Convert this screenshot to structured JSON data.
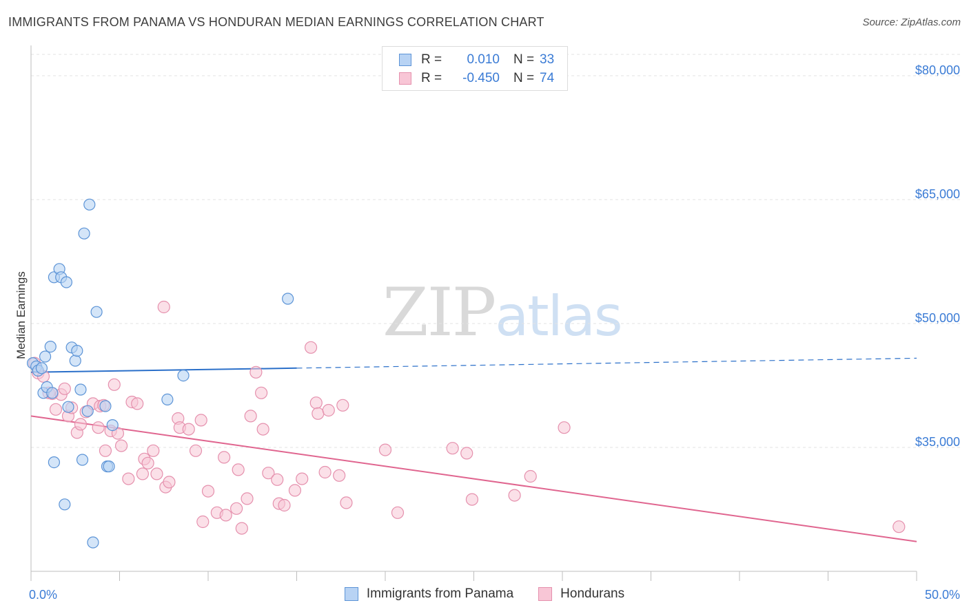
{
  "title": "IMMIGRANTS FROM PANAMA VS HONDURAN MEDIAN EARNINGS CORRELATION CHART",
  "source": "Source: ZipAtlas.com",
  "watermark": {
    "zip": "ZIP",
    "atlas": "atlas"
  },
  "legend": {
    "rows": [
      {
        "r_label": "R =",
        "r_value": "0.010",
        "n_label": "N =",
        "n_value": "33"
      },
      {
        "r_label": "R =",
        "r_value": "-0.450",
        "n_label": "N =",
        "n_value": "74"
      }
    ]
  },
  "colors": {
    "panama_fill": "#b8d3f4",
    "panama_stroke": "#5b93d6",
    "panama_line": "#2a6fc9",
    "honduran_fill": "#f8c6d6",
    "honduran_stroke": "#e590ad",
    "honduran_line": "#e0658f",
    "tick_text": "#3a7bd5",
    "grid": "#e3e3e3"
  },
  "chart_data": {
    "type": "scatter",
    "title": "IMMIGRANTS FROM PANAMA VS HONDURAN MEDIAN EARNINGS CORRELATION CHART",
    "xlabel": "",
    "ylabel": "Median Earnings",
    "xlim": [
      0,
      50
    ],
    "ylim": [
      20000,
      83000
    ],
    "x_tick_labels": [
      "0.0%",
      "50.0%"
    ],
    "y_ticks": [
      35000,
      50000,
      65000,
      80000
    ],
    "y_tick_labels": [
      "$35,000",
      "$50,000",
      "$65,000",
      "$80,000"
    ],
    "grid": true,
    "legend_position": "bottom",
    "series": [
      {
        "name": "Immigrants from Panama",
        "r": 0.01,
        "n": 33,
        "trend": {
          "x": [
            0,
            15,
            50
          ],
          "y": [
            44100,
            44600,
            45800
          ],
          "solid_until": 15
        },
        "points": [
          [
            0.1,
            45200
          ],
          [
            0.3,
            44800
          ],
          [
            0.4,
            44300
          ],
          [
            0.6,
            44600
          ],
          [
            0.7,
            41600
          ],
          [
            0.8,
            46000
          ],
          [
            0.9,
            42300
          ],
          [
            1.1,
            47200
          ],
          [
            1.2,
            41600
          ],
          [
            1.3,
            33200
          ],
          [
            1.3,
            55600
          ],
          [
            1.6,
            56600
          ],
          [
            1.7,
            55600
          ],
          [
            1.9,
            28100
          ],
          [
            2.0,
            55000
          ],
          [
            2.1,
            39900
          ],
          [
            2.3,
            47100
          ],
          [
            2.5,
            45500
          ],
          [
            2.6,
            46700
          ],
          [
            2.8,
            42000
          ],
          [
            2.9,
            33500
          ],
          [
            3.0,
            60900
          ],
          [
            3.2,
            39400
          ],
          [
            3.3,
            64400
          ],
          [
            3.5,
            23500
          ],
          [
            3.7,
            51400
          ],
          [
            4.2,
            40000
          ],
          [
            4.3,
            32700
          ],
          [
            4.4,
            32700
          ],
          [
            4.6,
            37700
          ],
          [
            7.7,
            40800
          ],
          [
            8.6,
            43700
          ],
          [
            14.5,
            53000
          ]
        ]
      },
      {
        "name": "Hondurans",
        "r": -0.45,
        "n": 74,
        "trend": {
          "x": [
            0,
            50
          ],
          "y": [
            38800,
            23600
          ]
        },
        "points": [
          [
            0.2,
            45200
          ],
          [
            0.4,
            44000
          ],
          [
            0.7,
            43600
          ],
          [
            1.0,
            41600
          ],
          [
            1.2,
            41500
          ],
          [
            1.4,
            39600
          ],
          [
            1.7,
            41400
          ],
          [
            1.9,
            42100
          ],
          [
            2.1,
            38800
          ],
          [
            2.3,
            39800
          ],
          [
            2.6,
            36800
          ],
          [
            2.8,
            37800
          ],
          [
            3.1,
            39300
          ],
          [
            3.5,
            40300
          ],
          [
            3.8,
            37400
          ],
          [
            3.9,
            40000
          ],
          [
            4.1,
            40100
          ],
          [
            4.2,
            34600
          ],
          [
            4.5,
            37000
          ],
          [
            4.7,
            42600
          ],
          [
            4.9,
            36700
          ],
          [
            5.1,
            35200
          ],
          [
            5.5,
            31200
          ],
          [
            5.7,
            40500
          ],
          [
            6.0,
            40300
          ],
          [
            6.3,
            31800
          ],
          [
            6.4,
            33600
          ],
          [
            6.6,
            33100
          ],
          [
            6.9,
            34600
          ],
          [
            7.1,
            31800
          ],
          [
            7.5,
            52000
          ],
          [
            7.6,
            30200
          ],
          [
            7.8,
            30800
          ],
          [
            8.3,
            38500
          ],
          [
            8.4,
            37400
          ],
          [
            8.9,
            37200
          ],
          [
            9.3,
            34600
          ],
          [
            9.6,
            38300
          ],
          [
            9.7,
            26000
          ],
          [
            10.0,
            29700
          ],
          [
            10.5,
            27100
          ],
          [
            10.9,
            33800
          ],
          [
            11.0,
            26800
          ],
          [
            11.6,
            27600
          ],
          [
            11.7,
            32300
          ],
          [
            11.9,
            25200
          ],
          [
            12.2,
            28800
          ],
          [
            12.4,
            38800
          ],
          [
            12.7,
            44100
          ],
          [
            13.0,
            41600
          ],
          [
            13.1,
            37200
          ],
          [
            13.4,
            31900
          ],
          [
            13.9,
            31100
          ],
          [
            14.0,
            28200
          ],
          [
            14.3,
            28000
          ],
          [
            14.9,
            29800
          ],
          [
            15.3,
            31200
          ],
          [
            15.8,
            47100
          ],
          [
            16.1,
            40400
          ],
          [
            16.2,
            39100
          ],
          [
            16.6,
            32000
          ],
          [
            16.8,
            39500
          ],
          [
            17.4,
            31600
          ],
          [
            17.6,
            40100
          ],
          [
            17.8,
            28300
          ],
          [
            20.0,
            34700
          ],
          [
            20.7,
            27100
          ],
          [
            23.8,
            34900
          ],
          [
            24.6,
            34300
          ],
          [
            24.9,
            28700
          ],
          [
            27.3,
            29200
          ],
          [
            28.2,
            31500
          ],
          [
            30.1,
            37400
          ],
          [
            49.0,
            25400
          ]
        ]
      }
    ]
  }
}
